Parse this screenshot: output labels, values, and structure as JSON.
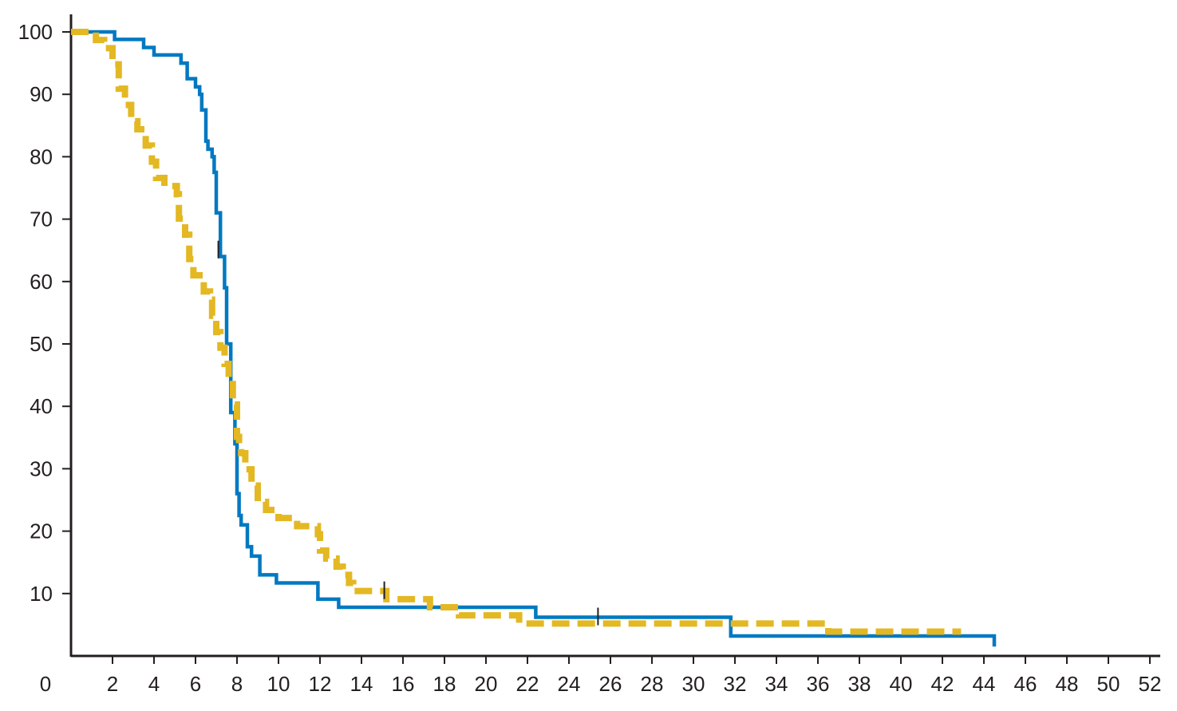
{
  "chart_data": {
    "type": "line",
    "title": "",
    "xlabel": "",
    "ylabel": "",
    "xlim": [
      0,
      52
    ],
    "ylim": [
      0,
      100
    ],
    "x_ticks": [
      2,
      4,
      6,
      8,
      10,
      12,
      14,
      16,
      18,
      20,
      22,
      24,
      26,
      28,
      30,
      32,
      34,
      36,
      38,
      40,
      42,
      44,
      46,
      48,
      50,
      52
    ],
    "y_ticks": [
      10,
      20,
      30,
      40,
      50,
      60,
      70,
      80,
      90,
      100
    ],
    "origin_label": "0",
    "grid": false,
    "legend": "none",
    "step": true,
    "series": [
      {
        "color": "#0079c1",
        "style": "solid",
        "points": [
          [
            0,
            100
          ],
          [
            2.1,
            98.8
          ],
          [
            3.5,
            97.5
          ],
          [
            4,
            96.3
          ],
          [
            5.3,
            95
          ],
          [
            5.6,
            92.5
          ],
          [
            6,
            91.2
          ],
          [
            6.2,
            90
          ],
          [
            6.3,
            87.5
          ],
          [
            6.5,
            82.5
          ],
          [
            6.6,
            81.2
          ],
          [
            6.8,
            80
          ],
          [
            6.9,
            77.5
          ],
          [
            7.0,
            71
          ],
          [
            7.2,
            64
          ],
          [
            7.4,
            59
          ],
          [
            7.5,
            50
          ],
          [
            7.7,
            39
          ],
          [
            7.9,
            34
          ],
          [
            8.0,
            26
          ],
          [
            8.1,
            22.5
          ],
          [
            8.2,
            21
          ],
          [
            8.5,
            17.5
          ],
          [
            8.7,
            16
          ],
          [
            9.1,
            13
          ],
          [
            9.9,
            11.7
          ],
          [
            11.9,
            9.1
          ],
          [
            12.9,
            7.8
          ],
          [
            22.4,
            6.2
          ],
          [
            31.8,
            3.2
          ],
          [
            44.5,
            1.5
          ]
        ],
        "end": 44.5,
        "censor_marks": [
          [
            7.1,
            65
          ],
          [
            25.4,
            6.2
          ]
        ]
      },
      {
        "color": "#e3b823",
        "style": "dashed",
        "points": [
          [
            0,
            100
          ],
          [
            1.2,
            98.7
          ],
          [
            1.6,
            97.4
          ],
          [
            2.0,
            94.8
          ],
          [
            2.3,
            90.9
          ],
          [
            2.6,
            88.3
          ],
          [
            2.9,
            85.7
          ],
          [
            3.2,
            84.4
          ],
          [
            3.6,
            81.8
          ],
          [
            3.9,
            79.2
          ],
          [
            4.1,
            76.6
          ],
          [
            4.5,
            75.3
          ],
          [
            5.1,
            74
          ],
          [
            5.2,
            70.1
          ],
          [
            5.5,
            67.5
          ],
          [
            5.7,
            63.6
          ],
          [
            5.9,
            61
          ],
          [
            6.4,
            58.4
          ],
          [
            6.7,
            57.1
          ],
          [
            6.8,
            54.5
          ],
          [
            7.0,
            51.9
          ],
          [
            7.2,
            49.4
          ],
          [
            7.4,
            46.8
          ],
          [
            7.6,
            44.2
          ],
          [
            7.8,
            40.3
          ],
          [
            8.0,
            35.1
          ],
          [
            8.1,
            33.8
          ],
          [
            8.2,
            32.5
          ],
          [
            8.4,
            29.9
          ],
          [
            8.7,
            27.3
          ],
          [
            9.0,
            24.7
          ],
          [
            9.4,
            23.4
          ],
          [
            10,
            22.1
          ],
          [
            10.9,
            20.8
          ],
          [
            11.9,
            19.5
          ],
          [
            12,
            16.9
          ],
          [
            12.3,
            15.6
          ],
          [
            12.8,
            14.3
          ],
          [
            13.1,
            13
          ],
          [
            13.4,
            11.7
          ],
          [
            13.6,
            10.4
          ],
          [
            15.2,
            9.1
          ],
          [
            17.3,
            7.8
          ],
          [
            18.7,
            6.5
          ],
          [
            21.6,
            5.2
          ],
          [
            36.5,
            3.9
          ],
          [
            42.9,
            3.9
          ]
        ],
        "end": 42.9,
        "censor_marks": [
          [
            15.1,
            10.4
          ]
        ]
      }
    ]
  }
}
